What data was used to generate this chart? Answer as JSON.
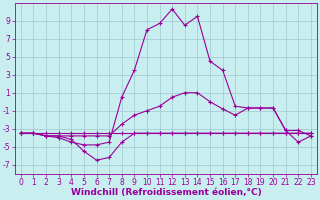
{
  "xlabel": "Windchill (Refroidissement éolien,°C)",
  "background_color": "#c8eef0",
  "grid_color": "#a0c8d0",
  "line_color": "#990099",
  "x_values": [
    0,
    1,
    2,
    3,
    4,
    5,
    6,
    7,
    8,
    9,
    10,
    11,
    12,
    13,
    14,
    15,
    16,
    17,
    18,
    19,
    20,
    21,
    22,
    23
  ],
  "series": [
    [
      -3.5,
      -3.5,
      -3.8,
      -3.8,
      -4.2,
      -5.5,
      -6.5,
      -6.2,
      -4.5,
      -3.5,
      -3.5,
      -3.5,
      -3.5,
      -3.5,
      -3.5,
      -3.5,
      -3.5,
      -3.5,
      -3.5,
      -3.5,
      -3.5,
      -3.5,
      -3.5,
      -3.5
    ],
    [
      -3.5,
      -3.5,
      -3.8,
      -4.0,
      -4.5,
      -4.8,
      -4.8,
      -4.5,
      0.5,
      3.5,
      8.0,
      8.7,
      10.3,
      8.5,
      9.5,
      4.5,
      3.5,
      -0.5,
      -0.7,
      -0.7,
      -0.7,
      -3.2,
      -4.5,
      -3.8
    ],
    [
      -3.5,
      -3.5,
      -3.5,
      -3.5,
      -3.5,
      -3.5,
      -3.5,
      -3.5,
      -3.5,
      -3.5,
      -3.5,
      -3.5,
      -3.5,
      -3.5,
      -3.5,
      -3.5,
      -3.5,
      -3.5,
      -3.5,
      -3.5,
      -3.5,
      -3.5,
      -3.5,
      -3.5
    ],
    [
      -3.5,
      -3.5,
      -3.8,
      -3.8,
      -3.8,
      -3.8,
      -3.8,
      -3.8,
      -2.5,
      -1.5,
      -1.0,
      -0.5,
      0.5,
      1.0,
      1.0,
      0.0,
      -0.8,
      -1.5,
      -0.7,
      -0.7,
      -0.7,
      -3.2,
      -3.2,
      -3.8
    ]
  ],
  "ylim": [
    -8,
    11
  ],
  "xlim": [
    -0.5,
    23.5
  ],
  "yticks": [
    -7,
    -5,
    -3,
    -1,
    1,
    3,
    5,
    7,
    9
  ],
  "xticks": [
    0,
    1,
    2,
    3,
    4,
    5,
    6,
    7,
    8,
    9,
    10,
    11,
    12,
    13,
    14,
    15,
    16,
    17,
    18,
    19,
    20,
    21,
    22,
    23
  ],
  "tick_fontsize": 5.5,
  "xlabel_fontsize": 6.5
}
